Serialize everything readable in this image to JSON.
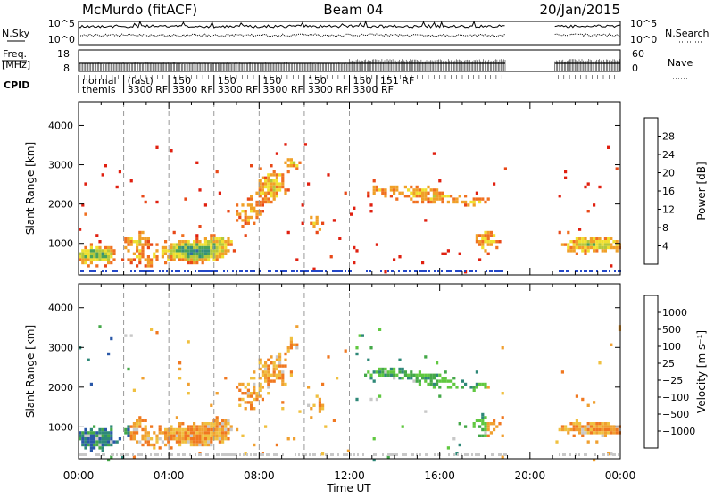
{
  "header": {
    "station": "McMurdo (fitACF)",
    "beam": "Beam 04",
    "date": "20/Jan/2015"
  },
  "side_labels": {
    "nsky": "N.Sky",
    "nsearch": "N.Search",
    "freq": "Freq.",
    "freq_unit": "[MHz]",
    "nave": "Nave",
    "cpid": "CPID"
  },
  "small_axes": {
    "noise_left": [
      "10^5",
      "10^0"
    ],
    "noise_right": [
      "10^5",
      "10^0"
    ],
    "freq_left": [
      "18",
      "8"
    ],
    "nave_right": [
      "60",
      "0"
    ]
  },
  "cpid_modes": [
    {
      "x": 0.0,
      "top": "normal",
      "bottom": "themis"
    },
    {
      "x": 2.0,
      "top": "(fast)",
      "bottom": "3300 RF"
    },
    {
      "x": 4.0,
      "top": "150",
      "bottom": "3300 RF"
    },
    {
      "x": 6.0,
      "top": "150",
      "bottom": "3300 RF"
    },
    {
      "x": 8.0,
      "top": "150",
      "bottom": "3300 RF"
    },
    {
      "x": 10.0,
      "top": "150",
      "bottom": "3300 RF"
    },
    {
      "x": 12.0,
      "top": "150",
      "bottom": "3300 RF"
    },
    {
      "x": 13.2,
      "top": "151 RF",
      "bottom": ""
    }
  ],
  "chart_data": [
    {
      "type": "heatmap",
      "title": "Power",
      "ylabel": "Slant Range [km]",
      "xlabel": "Time UT",
      "xlim": [
        0,
        24
      ],
      "ylim": [
        200,
        4600
      ],
      "yticks": [
        1000,
        2000,
        3000,
        4000
      ],
      "xticks": [
        "00:00",
        "04:00",
        "08:00",
        "12:00",
        "16:00",
        "20:00",
        "00:00"
      ],
      "colorbar": {
        "label": "Power [dB]",
        "ticks": [
          "4",
          "8",
          "12",
          "16",
          "20",
          "24",
          "28"
        ],
        "colors": [
          "#0010ff",
          "#2347c8",
          "#2f6ea0",
          "#36907a",
          "#4aa25a",
          "#b5c83a",
          "#f0e030",
          "#f0a028",
          "#f07020",
          "#e84818",
          "#e02010"
        ]
      },
      "data_gap": [
        18.9,
        21.1
      ]
    },
    {
      "type": "heatmap",
      "title": "Velocity",
      "ylabel": "Slant Range [km]",
      "xlabel": "Time UT",
      "xlim": [
        0,
        24
      ],
      "ylim": [
        200,
        4600
      ],
      "yticks": [
        1000,
        2000,
        3000,
        4000
      ],
      "xticks": [
        "00:00",
        "04:00",
        "08:00",
        "12:00",
        "16:00",
        "20:00",
        "00:00"
      ],
      "colorbar": {
        "label": "Velocity [m s⁻¹]",
        "ticks": [
          "1000",
          "500",
          "100",
          "25",
          "−25",
          "−100",
          "−500",
          "−1000"
        ],
        "colors": [
          "#1a30c8",
          "#2a58a8",
          "#2e8878",
          "#44a848",
          "#60c840",
          "#c8c8c8",
          "#f0c040",
          "#f0a030",
          "#f07820",
          "#e84820",
          "#e01010"
        ]
      },
      "data_gap": [
        18.9,
        21.1
      ]
    }
  ]
}
